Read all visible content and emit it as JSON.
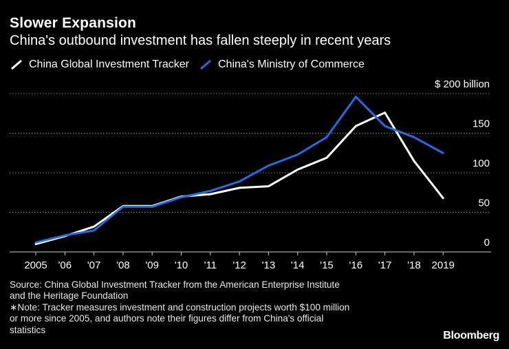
{
  "header": {
    "title": "Slower Expansion",
    "subtitle": "China's outbound investment has fallen steeply in recent years"
  },
  "legend": [
    {
      "label": "China Global Investment Tracker",
      "color": "#ffffff"
    },
    {
      "label": "China's Ministry of Commerce",
      "color": "#1e6ee8"
    }
  ],
  "chart_data": {
    "type": "line",
    "title": "Slower Expansion",
    "subtitle": "China's outbound investment has fallen steeply in recent years",
    "x": [
      "2005",
      "'06",
      "'07",
      "'08",
      "'09",
      "'10",
      "'11",
      "'12",
      "'13",
      "'14",
      "'15",
      "'16",
      "'17",
      "'18",
      "2019"
    ],
    "y_ticks": [
      0,
      50,
      100,
      150,
      200
    ],
    "y_tick_labels": [
      "0",
      "50",
      "100",
      "150",
      "$ 200 billion"
    ],
    "ylim": [
      0,
      200
    ],
    "series": [
      {
        "name": "China Global Investment Tracker",
        "color": "#ffffff",
        "values": [
          10,
          20,
          32,
          58,
          58,
          70,
          73,
          81,
          83,
          104,
          119,
          159,
          176,
          115,
          68
        ]
      },
      {
        "name": "China's Ministry of Commerce",
        "color": "#1e6ee8",
        "values": [
          12,
          21,
          27,
          57,
          57,
          69,
          77,
          89,
          109,
          123,
          145,
          196,
          159,
          145,
          125
        ]
      }
    ],
    "grid": true,
    "xlabel": "",
    "ylabel": ""
  },
  "footer": {
    "source_lines": [
      "Source: China Global Investment Tracker from the American Enterprise Institute",
      "and the Heritage Foundation",
      "∗Note: Tracker measures investment and construction projects worth $100 million",
      "or more since 2005, and authors note their figures differ from China's official",
      "statistics"
    ],
    "brand": "Bloomberg"
  }
}
